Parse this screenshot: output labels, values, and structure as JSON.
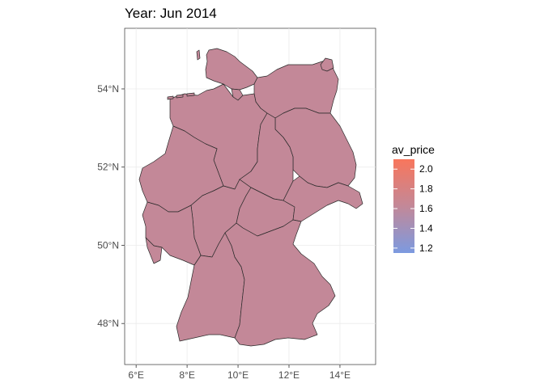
{
  "title": "Year: Jun 2014",
  "map": {
    "fill_color": "#c38898",
    "axes": {
      "x_ticks": [
        {
          "value": 6,
          "label": "6°E"
        },
        {
          "value": 8,
          "label": "8°E"
        },
        {
          "value": 10,
          "label": "10°E"
        },
        {
          "value": 12,
          "label": "12°E"
        },
        {
          "value": 14,
          "label": "14°E"
        }
      ],
      "y_ticks": [
        {
          "value": 48,
          "label": "48°N"
        },
        {
          "value": 50,
          "label": "50°N"
        },
        {
          "value": 52,
          "label": "52°N"
        },
        {
          "value": 54,
          "label": "54°N"
        }
      ],
      "xlim": [
        5.55,
        15.4
      ],
      "ylim": [
        46.95,
        55.55
      ],
      "grid": true
    }
  },
  "legend": {
    "title": "av_price",
    "range": [
      1.15,
      2.1
    ],
    "labels": [
      "2.0",
      "1.8",
      "1.6",
      "1.4",
      "1.2"
    ],
    "values": [
      2.0,
      1.8,
      1.6,
      1.4,
      1.2
    ],
    "colors": [
      "#f8765c",
      "#c38898",
      "#7c9ae0"
    ],
    "placement": "right"
  },
  "chart_data": {
    "type": "map",
    "title": "Year: Jun 2014",
    "xlabel": "",
    "ylabel": "",
    "xlim": [
      5.55,
      15.4
    ],
    "ylim": [
      46.95,
      55.55
    ],
    "legend_title": "av_price",
    "fill_value_estimate": 1.55,
    "grid": true
  }
}
